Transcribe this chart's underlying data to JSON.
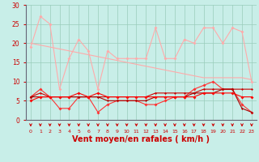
{
  "x": [
    0,
    1,
    2,
    3,
    4,
    5,
    6,
    7,
    8,
    9,
    10,
    11,
    12,
    13,
    14,
    15,
    16,
    17,
    18,
    19,
    20,
    21,
    22,
    23
  ],
  "series": [
    {
      "name": "rafales_max",
      "color": "#ffaaaa",
      "linewidth": 0.8,
      "markersize": 2.0,
      "values": [
        19,
        27,
        25,
        8,
        16,
        21,
        18,
        8,
        18,
        16,
        16,
        16,
        16,
        24,
        16,
        16,
        21,
        20,
        24,
        24,
        20,
        24,
        23,
        10
      ]
    },
    {
      "name": "rafales_trend",
      "color": "#ffaaaa",
      "linewidth": 0.8,
      "markersize": 0,
      "values": [
        20,
        19.5,
        19,
        18.5,
        18,
        17.5,
        17,
        16.5,
        16,
        15.5,
        15,
        14.5,
        14,
        13.5,
        13,
        12.5,
        12,
        11.5,
        11,
        11,
        11,
        11,
        11,
        10.5
      ]
    },
    {
      "name": "vent_max",
      "color": "#ff3333",
      "linewidth": 0.8,
      "markersize": 2.0,
      "values": [
        6,
        8,
        6,
        3,
        3,
        6,
        6,
        2,
        4,
        5,
        5,
        5,
        4,
        4,
        5,
        6,
        6,
        8,
        9,
        10,
        8,
        8,
        4,
        2
      ]
    },
    {
      "name": "vent_mean1",
      "color": "#cc0000",
      "linewidth": 0.8,
      "markersize": 1.5,
      "values": [
        6,
        7,
        6,
        6,
        6,
        6,
        6,
        6,
        6,
        6,
        6,
        6,
        6,
        7,
        7,
        7,
        7,
        7,
        8,
        8,
        8,
        8,
        8,
        8
      ]
    },
    {
      "name": "vent_mean2",
      "color": "#aa0000",
      "linewidth": 0.8,
      "markersize": 1.5,
      "values": [
        6,
        6,
        6,
        6,
        6,
        6,
        6,
        6,
        5,
        5,
        5,
        5,
        5,
        6,
        6,
        6,
        6,
        7,
        7,
        7,
        8,
        8,
        3,
        2
      ]
    },
    {
      "name": "vent_min",
      "color": "#ff0000",
      "linewidth": 0.8,
      "markersize": 2.0,
      "values": [
        5,
        6,
        6,
        6,
        6,
        7,
        6,
        7,
        6,
        6,
        6,
        6,
        6,
        6,
        6,
        6,
        6,
        6,
        7,
        7,
        7,
        7,
        6,
        6
      ]
    }
  ],
  "xlabel": "Vent moyen/en rafales ( km/h )",
  "xlabel_color": "#cc0000",
  "xlabel_fontsize": 7,
  "ylim": [
    0,
    30
  ],
  "yticks": [
    0,
    5,
    10,
    15,
    20,
    25,
    30
  ],
  "ytick_labels": [
    "0",
    "5",
    "10",
    "15",
    "20",
    "25",
    "30"
  ],
  "xticks": [
    0,
    1,
    2,
    3,
    4,
    5,
    6,
    7,
    8,
    9,
    10,
    11,
    12,
    13,
    14,
    15,
    16,
    17,
    18,
    19,
    20,
    21,
    22,
    23
  ],
  "bg_color": "#c8eee8",
  "grid_color": "#99ccbb",
  "tick_color": "#cc0000",
  "arrow_color": "#cc0000",
  "axis_left_color": "#666677"
}
